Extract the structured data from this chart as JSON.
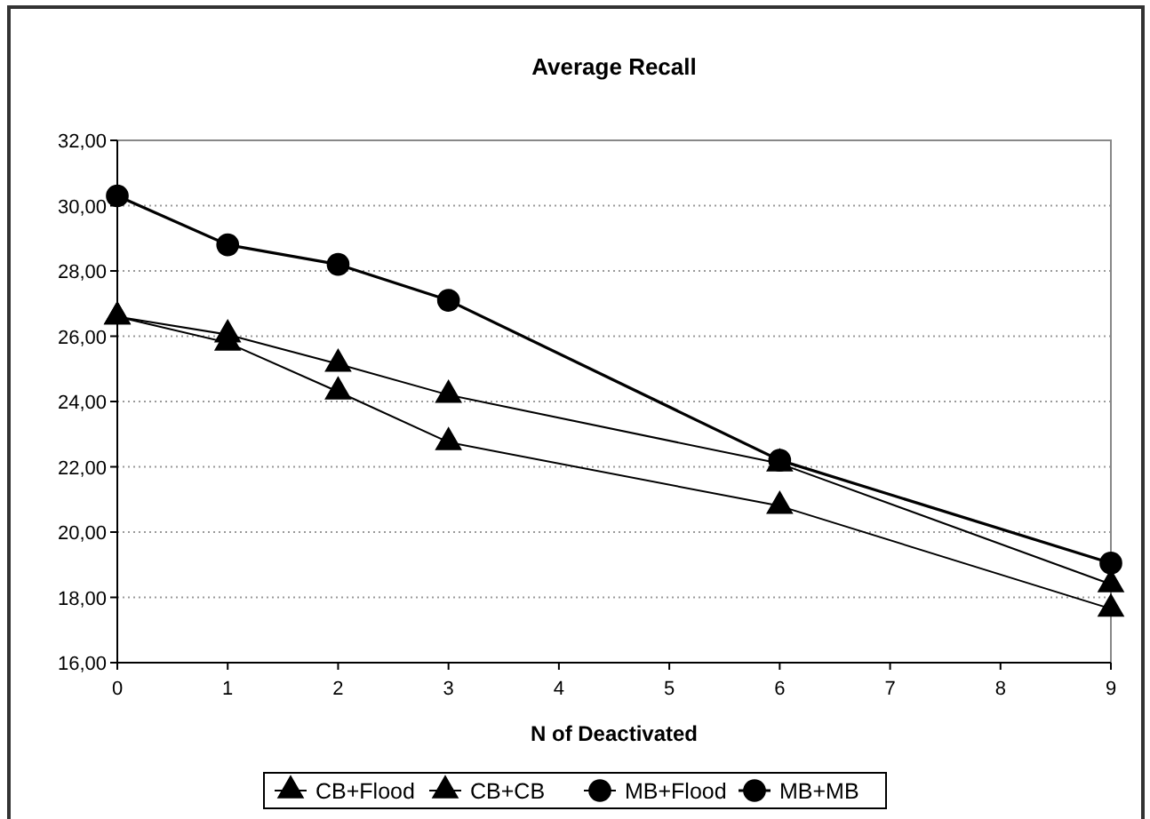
{
  "chart_data": {
    "type": "line",
    "title": "Average Recall",
    "xlabel": "N of Deactivated",
    "xlim": [
      0,
      9
    ],
    "xticks": [
      0,
      1,
      2,
      3,
      4,
      5,
      6,
      7,
      8,
      9
    ],
    "ylim": [
      16,
      32
    ],
    "yticks": [
      {
        "value": 16,
        "label": "16,00"
      },
      {
        "value": 18,
        "label": "18,00"
      },
      {
        "value": 20,
        "label": "20,00"
      },
      {
        "value": 22,
        "label": "22,00"
      },
      {
        "value": 24,
        "label": "24,00"
      },
      {
        "value": 26,
        "label": "26,00"
      },
      {
        "value": 28,
        "label": "28,00"
      },
      {
        "value": 30,
        "label": "30,00"
      },
      {
        "value": 32,
        "label": "32,00"
      }
    ],
    "x": [
      0,
      1,
      2,
      3,
      6,
      9
    ],
    "grid": "y",
    "legend": "bottom",
    "line_style": "solid",
    "series": [
      {
        "name": "CB+Flood",
        "color": "#000000",
        "marker": "triangle",
        "values": [
          26.6,
          26.05,
          25.15,
          24.2,
          22.1,
          18.4
        ]
      },
      {
        "name": "CB+CB",
        "color": "#000000",
        "marker": "triangle",
        "values": [
          26.6,
          25.8,
          24.3,
          22.75,
          20.8,
          17.65
        ]
      },
      {
        "name": "MB+Flood",
        "color": "#000000",
        "marker": "circle",
        "values": [
          null,
          null,
          null,
          null,
          null,
          null
        ]
      },
      {
        "name": "MB+MB",
        "color": "#000000",
        "marker": "circle",
        "values": [
          30.3,
          28.8,
          28.2,
          27.1,
          22.2,
          19.05
        ]
      }
    ]
  }
}
